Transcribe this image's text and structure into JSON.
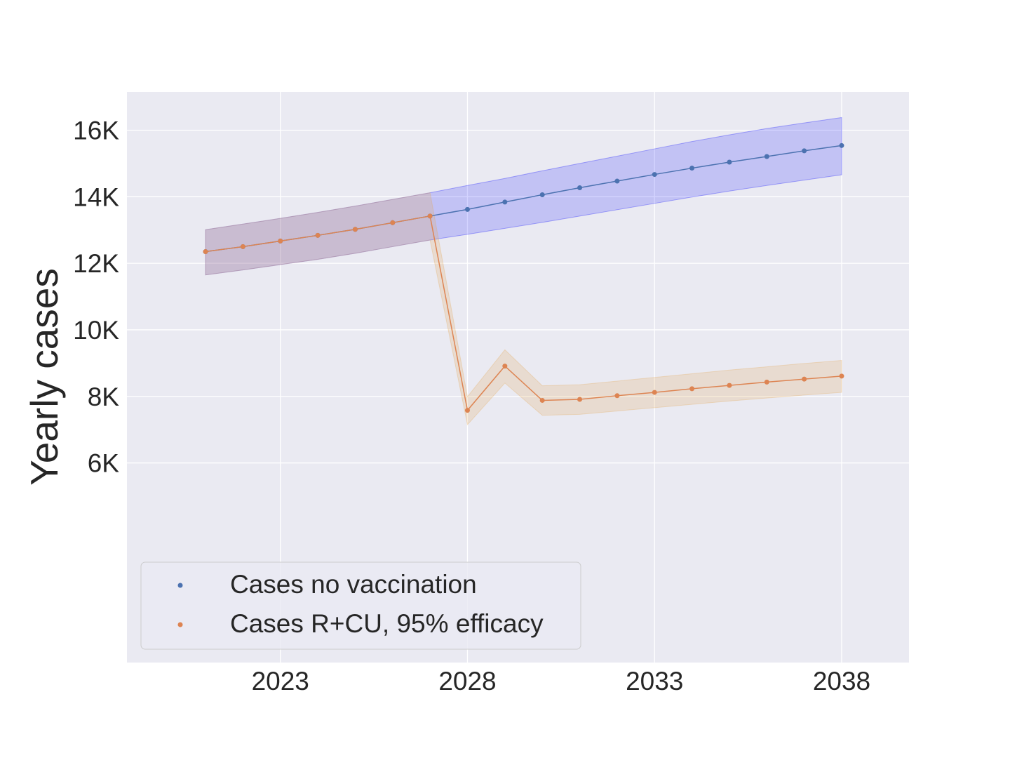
{
  "chart_data": {
    "type": "line",
    "title": "",
    "xlabel": "",
    "ylabel": "Yearly cases",
    "x": [
      2021,
      2022,
      2023,
      2024,
      2025,
      2026,
      2027,
      2028,
      2029,
      2030,
      2031,
      2032,
      2033,
      2034,
      2035,
      2036,
      2037,
      2038
    ],
    "xlim": [
      2018.9,
      2039.8
    ],
    "ylim": [
      0,
      17150
    ],
    "x_ticks": [
      2023,
      2028,
      2033,
      2038
    ],
    "x_tick_labels": [
      "2023",
      "2028",
      "2033",
      "2038"
    ],
    "y_ticks": [
      6000,
      8000,
      10000,
      12000,
      14000,
      16000
    ],
    "y_tick_labels": [
      "6K",
      "8K",
      "10K",
      "12K",
      "14K",
      "16K"
    ],
    "grid": true,
    "legend_position": "lower-left",
    "series": [
      {
        "name": "Cases no vaccination",
        "color": "#4c72b0",
        "band_color": "#0000ff",
        "values": [
          12350,
          12500,
          12670,
          12840,
          13020,
          13220,
          13420,
          13620,
          13840,
          14060,
          14270,
          14470,
          14670,
          14860,
          15040,
          15210,
          15380,
          15540
        ],
        "lower": [
          11650,
          11800,
          11960,
          12120,
          12300,
          12500,
          12700,
          12870,
          13050,
          13230,
          13420,
          13610,
          13800,
          13990,
          14170,
          14340,
          14500,
          14660
        ],
        "upper": [
          13010,
          13180,
          13350,
          13530,
          13720,
          13920,
          14120,
          14340,
          14550,
          14780,
          15000,
          15220,
          15440,
          15660,
          15860,
          16050,
          16220,
          16380
        ]
      },
      {
        "name": "Cases R+CU, 95% efficacy",
        "color": "#dd8452",
        "band_color": "#e3a857",
        "values": [
          12350,
          12500,
          12670,
          12840,
          13020,
          13220,
          13420,
          7580,
          8910,
          7880,
          7910,
          8020,
          8120,
          8230,
          8330,
          8430,
          8520,
          8610
        ],
        "lower": [
          11650,
          11800,
          11960,
          12120,
          12300,
          12500,
          12700,
          7150,
          8400,
          7430,
          7460,
          7560,
          7660,
          7760,
          7860,
          7950,
          8040,
          8120
        ],
        "upper": [
          13010,
          13180,
          13350,
          13530,
          13720,
          13920,
          14120,
          7990,
          9400,
          8320,
          8350,
          8460,
          8570,
          8680,
          8790,
          8890,
          8990,
          9080
        ]
      }
    ]
  }
}
